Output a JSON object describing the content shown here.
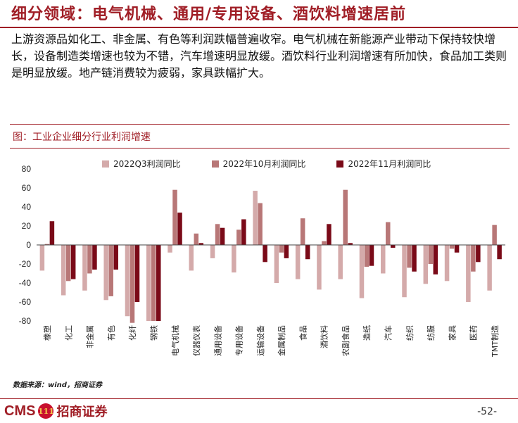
{
  "slide": {
    "title": "细分领域：电气机械、通用/专用设备、酒饮料增速居前",
    "summary": "上游资源品如化工、非金属、有色等利润跌幅普遍收窄。电气机械在新能源产业带动下保持较快增长，设备制造类增速也较为不错，汽车增速明显放缓。酒饮料行业利润增速有所加快，食品加工类则是明显放缓。地产链消费较为疲弱，家具跌幅扩大。",
    "figure_title": "图：工业企业细分行业利润增速",
    "source": "数据来源：wind，招商证券",
    "page_number": "-52-",
    "logo_latin": "CMS",
    "logo_mark": "111",
    "logo_cn": "招商证券"
  },
  "colors": {
    "brand": "#a01e26",
    "series_q3": "#d4aaaa",
    "series_oct": "#b87777",
    "series_nov": "#7a0a18"
  },
  "chart_data": {
    "type": "bar",
    "categories": [
      "橡塑",
      "化工",
      "非金属",
      "有色",
      "化纤",
      "钢铁",
      "电气机械",
      "仪器仪表",
      "通用设备",
      "专用设备",
      "运输设备",
      "金属制品",
      "食品",
      "酒饮料",
      "农副食品",
      "造纸",
      "汽车",
      "纺织",
      "纺服",
      "家具",
      "医药",
      "TMT制造"
    ],
    "series": [
      {
        "name": "2022Q3利润同比",
        "values": [
          -27,
          -53,
          -48,
          -58,
          -75,
          -80,
          -8,
          -27,
          -14,
          -29,
          57,
          -40,
          -36,
          -47,
          -36,
          -56,
          -30,
          -55,
          -41,
          -38,
          -60,
          -48
        ]
      },
      {
        "name": "2022年10月利润同比",
        "values": [
          1,
          -38,
          -30,
          -54,
          -82,
          -80,
          58,
          12,
          22,
          16,
          44,
          -8,
          28,
          4,
          58,
          -23,
          24,
          -24,
          -20,
          -4,
          -28,
          21
        ]
      },
      {
        "name": "2022年11月利润同比",
        "values": [
          25,
          -36,
          -26,
          -26,
          -60,
          -80,
          34,
          2,
          18,
          27,
          -18,
          -14,
          -15,
          22,
          2,
          -22,
          -3,
          -28,
          -31,
          -8,
          -18,
          -15
        ]
      }
    ],
    "ylim": [
      -80,
      80
    ],
    "yticks": [
      -80,
      -60,
      -40,
      -20,
      0,
      20,
      40,
      60,
      80
    ],
    "xlabel": "",
    "ylabel": "",
    "legend_position": "top",
    "grid": false
  }
}
